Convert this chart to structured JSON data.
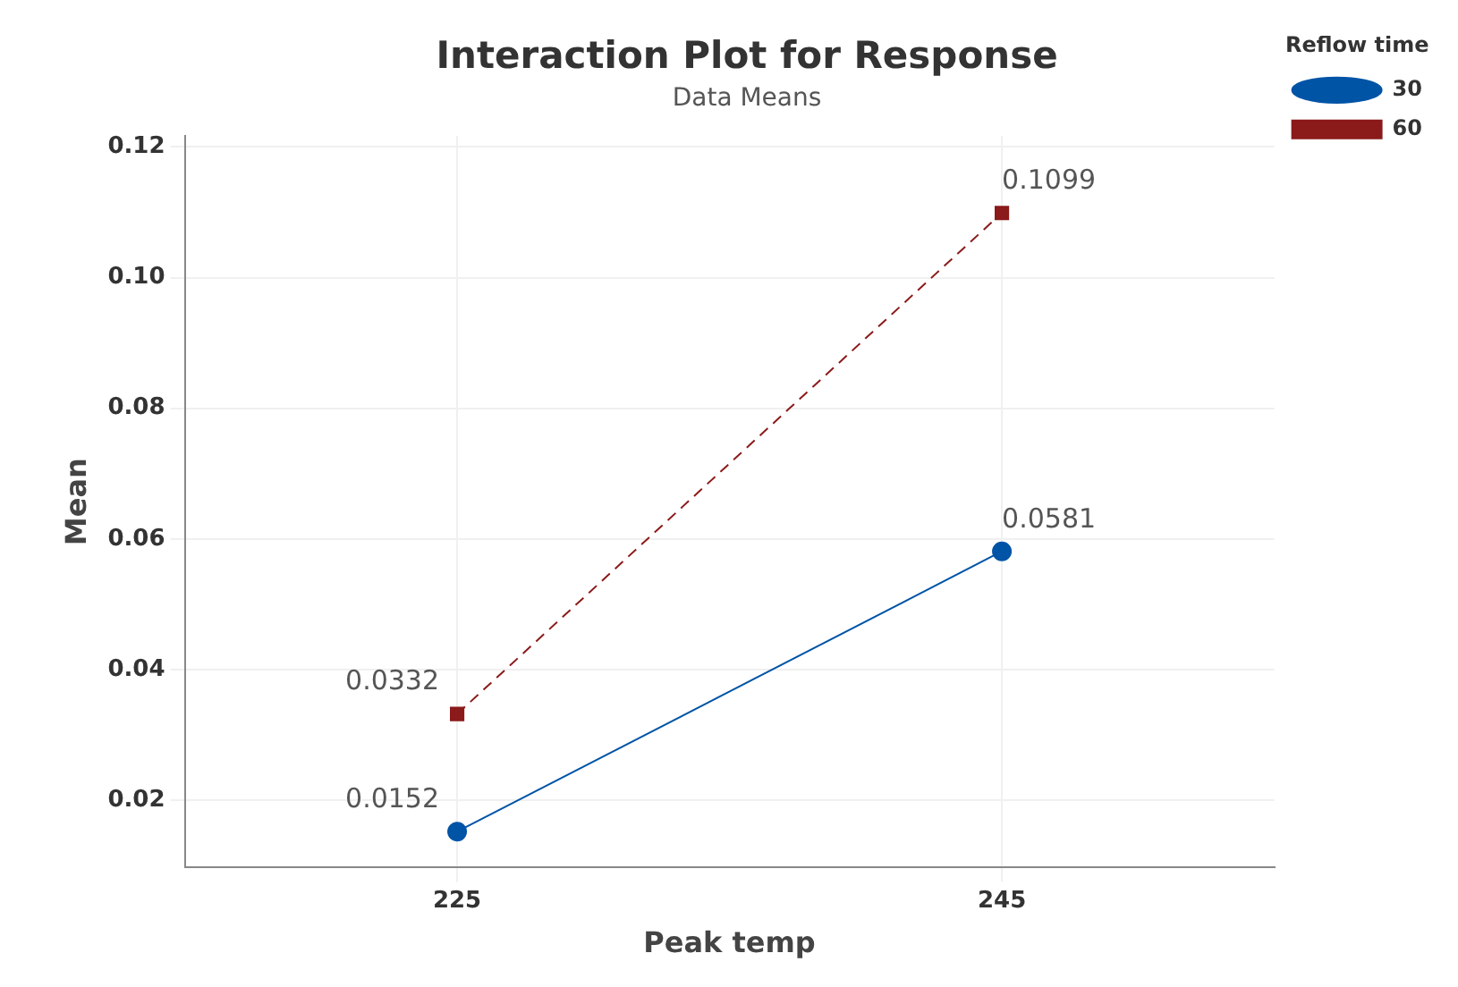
{
  "chart_data": {
    "type": "line",
    "title": "Interaction Plot for Response",
    "subtitle": "Data Means",
    "xlabel": "Peak temp",
    "ylabel": "Mean",
    "legend_title": "Reflow time",
    "legend": "right",
    "categories": [
      "225",
      "245"
    ],
    "series": [
      {
        "name": "30",
        "color": "#0054a6",
        "values": [
          0.0152,
          0.0581
        ],
        "marker": "circle",
        "line_style": "solid"
      },
      {
        "name": "60",
        "color": "#8b1a1a",
        "values": [
          0.0332,
          0.1099
        ],
        "marker": "square",
        "line_style": "dashed"
      }
    ],
    "ylim": [
      0.0097,
      0.1217
    ],
    "yticks": [
      {
        "value": 0.02,
        "label": "0.02"
      },
      {
        "value": 0.04,
        "label": "0.04"
      },
      {
        "value": 0.06,
        "label": "0.06"
      },
      {
        "value": 0.08,
        "label": "0.08"
      },
      {
        "value": 0.1,
        "label": "0.10"
      },
      {
        "value": 0.12,
        "label": "0.12"
      }
    ],
    "grid": true,
    "data_labels": true
  }
}
